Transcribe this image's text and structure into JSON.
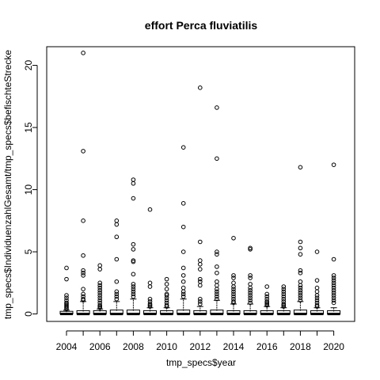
{
  "chart_data": {
    "type": "boxplot",
    "title": "effort Perca fluviatilis",
    "xlabel": "tmp_specs$year",
    "ylabel": "tmp_specs$IndividuenzahlGesamt/tmp_specs$befischteStrecke",
    "ylim": [
      -0.6,
      21.5
    ],
    "y_ticks": [
      0,
      5,
      10,
      15,
      20
    ],
    "x_tick_labels": [
      "2004",
      "2006",
      "2008",
      "2010",
      "2012",
      "2014",
      "2016",
      "2018",
      "2020"
    ],
    "categories": [
      "2004",
      "2005",
      "2006",
      "2007",
      "2008",
      "2009",
      "2010",
      "2011",
      "2012",
      "2013",
      "2014",
      "2015",
      "2016",
      "2017",
      "2018",
      "2019",
      "2020"
    ],
    "box_upper": [
      0.15,
      0.2,
      0.2,
      0.25,
      0.25,
      0.2,
      0.2,
      0.25,
      0.2,
      0.25,
      0.2,
      0.2,
      0.2,
      0.2,
      0.25,
      0.2,
      0.2
    ],
    "whisker_upper": [
      0.3,
      1.0,
      0.4,
      1.0,
      1.2,
      0.5,
      0.5,
      1.2,
      0.6,
      1.1,
      0.8,
      0.8,
      0.6,
      0.5,
      1.0,
      0.5,
      0.5
    ],
    "outliers": [
      [
        3.7,
        2.8,
        1.5,
        1.3,
        1.1,
        0.9,
        0.8,
        0.7,
        0.6,
        0.5,
        0.4
      ],
      [
        21.0,
        13.1,
        7.5,
        4.7,
        3.5,
        3.3,
        3.1,
        2.0,
        1.6,
        1.4,
        1.2,
        1.1
      ],
      [
        3.9,
        3.6,
        2.5,
        2.3,
        2.1,
        1.9,
        1.7,
        1.5,
        1.3,
        1.1,
        0.9,
        0.7,
        0.6,
        0.5
      ],
      [
        7.5,
        7.2,
        6.2,
        4.4,
        2.6,
        1.8,
        1.6,
        1.4,
        1.2
      ],
      [
        10.8,
        10.5,
        9.3,
        5.6,
        5.2,
        4.3,
        4.2,
        3.2,
        2.4,
        2.2,
        2.0,
        1.8,
        1.6,
        1.4
      ],
      [
        8.4,
        2.5,
        2.2,
        1.2,
        1.0,
        0.8,
        0.7,
        0.6
      ],
      [
        2.8,
        2.4,
        2.0,
        1.6,
        1.5,
        1.3,
        1.1,
        0.9,
        0.7,
        0.6
      ],
      [
        13.4,
        8.9,
        7.0,
        5.0,
        3.7,
        3.1,
        2.6,
        2.1,
        1.8,
        1.6,
        1.4
      ],
      [
        18.2,
        5.8,
        4.3,
        4.0,
        3.6,
        2.8,
        2.6,
        2.3,
        1.2,
        1.0,
        0.8
      ],
      [
        16.6,
        12.5,
        5.0,
        4.8,
        3.8,
        3.3,
        2.6,
        2.3,
        2.0,
        1.8,
        1.6,
        1.4,
        1.2
      ],
      [
        6.1,
        3.1,
        2.9,
        2.5,
        2.2,
        2.0,
        1.8,
        1.6,
        1.4,
        1.2,
        1.0,
        0.9
      ],
      [
        5.3,
        5.2,
        3.1,
        2.9,
        2.4,
        2.1,
        1.9,
        1.7,
        1.5,
        1.3,
        1.1,
        0.9
      ],
      [
        2.2,
        1.6,
        1.4,
        1.2,
        1.0,
        0.9,
        0.8,
        0.7
      ],
      [
        2.2,
        2.0,
        1.8,
        1.6,
        1.4,
        1.2,
        1.0,
        0.8,
        0.7,
        0.6
      ],
      [
        11.8,
        5.8,
        5.3,
        4.8,
        3.5,
        3.3,
        2.6,
        2.3,
        2.1,
        1.9,
        1.7,
        1.5,
        1.3,
        1.1
      ],
      [
        5.0,
        2.7,
        2.1,
        1.8,
        1.5,
        1.3,
        1.1,
        0.9,
        0.7,
        0.6
      ],
      [
        12.0,
        4.4,
        3.1,
        2.9,
        2.7,
        2.5,
        2.3,
        2.1,
        1.9,
        1.7,
        1.5,
        1.3,
        1.1,
        0.9
      ]
    ],
    "colors": {
      "stroke": "#000000",
      "background": "#ffffff"
    }
  }
}
